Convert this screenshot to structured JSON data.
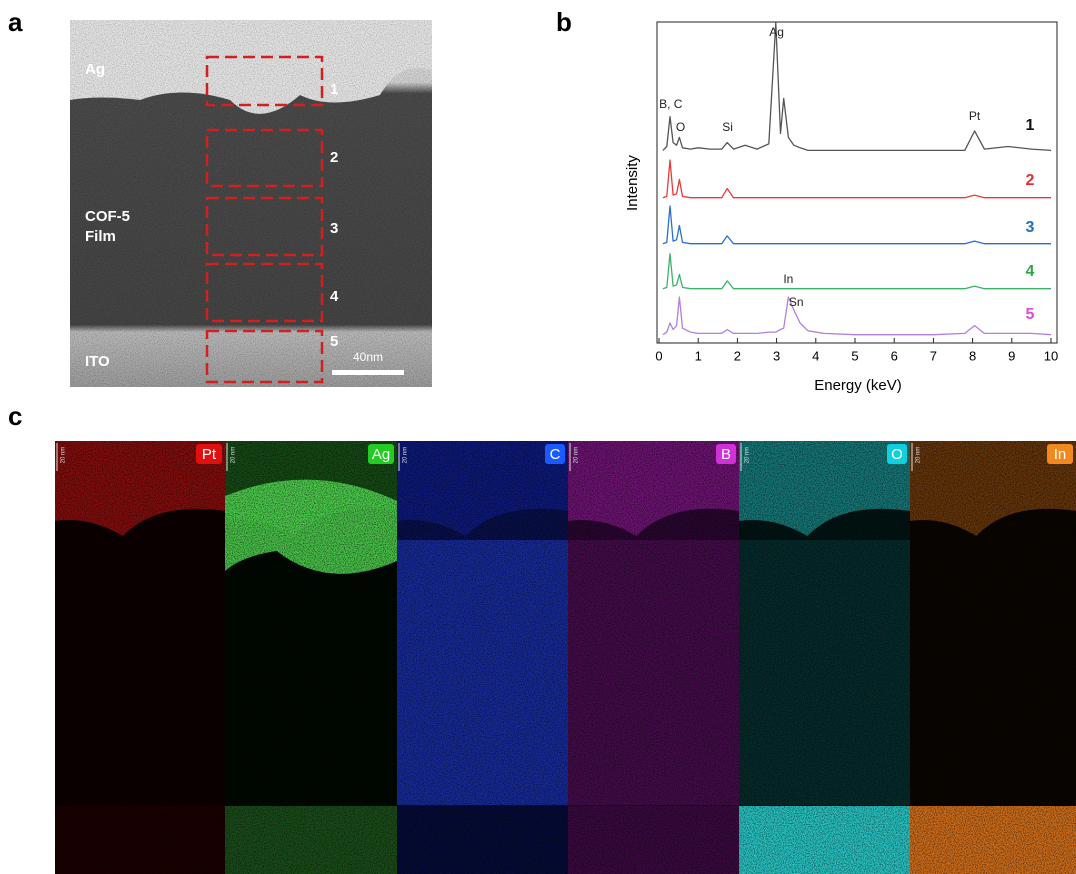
{
  "panel_labels": [
    "a",
    "b",
    "c"
  ],
  "panel_a": {
    "ag_label": "Ag",
    "film_label": [
      "COF-5",
      "Film"
    ],
    "ito_label": "ITO",
    "regions": [
      "1",
      "2",
      "3",
      "4",
      "5"
    ],
    "scale_bar": "40nm"
  },
  "chart_data": {
    "type": "line",
    "xlabel": "Energy (keV)",
    "ylabel": "Intensity",
    "x": [
      0.1,
      0.2,
      0.28,
      0.36,
      0.45,
      0.52,
      0.6,
      0.8,
      1.0,
      1.3,
      1.6,
      1.74,
      1.9,
      2.2,
      2.5,
      2.8,
      2.98,
      3.1,
      3.18,
      3.3,
      3.44,
      3.6,
      3.8,
      4.2,
      5,
      6,
      7,
      7.8,
      8.05,
      8.3,
      8.9,
      9.5,
      10
    ],
    "xlim": [
      0,
      10
    ],
    "xticks": [
      0,
      1,
      2,
      3,
      4,
      5,
      6,
      7,
      8,
      9,
      10
    ],
    "ylim": [
      0,
      1
    ],
    "series": [
      {
        "name": "1",
        "color": "#555555",
        "label_color": "#111111",
        "values": [
          0.02,
          0.05,
          0.28,
          0.08,
          0.06,
          0.12,
          0.04,
          0.03,
          0.04,
          0.03,
          0.03,
          0.08,
          0.03,
          0.06,
          0.03,
          0.07,
          1.0,
          0.15,
          0.42,
          0.12,
          0.06,
          0.04,
          0.02,
          0.02,
          0.02,
          0.02,
          0.02,
          0.02,
          0.17,
          0.03,
          0.05,
          0.03,
          0.02
        ]
      },
      {
        "name": "2",
        "color": "#e83a3a",
        "label_color": "#e0302e",
        "values": [
          0.01,
          0.02,
          0.3,
          0.03,
          0.04,
          0.15,
          0.02,
          0.01,
          0.01,
          0.01,
          0.01,
          0.08,
          0.01,
          0.01,
          0.01,
          0.01,
          0.01,
          0.01,
          0.01,
          0.01,
          0.01,
          0.01,
          0.01,
          0.01,
          0.01,
          0.01,
          0.01,
          0.01,
          0.03,
          0.01,
          0.01,
          0.01,
          0.01
        ]
      },
      {
        "name": "3",
        "color": "#2a6fd0",
        "label_color": "#1f6fbf",
        "values": [
          0.01,
          0.02,
          0.3,
          0.03,
          0.04,
          0.15,
          0.02,
          0.01,
          0.01,
          0.01,
          0.01,
          0.07,
          0.01,
          0.01,
          0.01,
          0.01,
          0.01,
          0.01,
          0.01,
          0.01,
          0.01,
          0.01,
          0.01,
          0.01,
          0.01,
          0.01,
          0.01,
          0.01,
          0.03,
          0.01,
          0.01,
          0.01,
          0.01
        ]
      },
      {
        "name": "4",
        "color": "#3cb36a",
        "label_color": "#2aa84a",
        "values": [
          0.01,
          0.02,
          0.28,
          0.03,
          0.04,
          0.12,
          0.02,
          0.01,
          0.01,
          0.01,
          0.01,
          0.07,
          0.01,
          0.01,
          0.01,
          0.01,
          0.01,
          0.01,
          0.01,
          0.01,
          0.01,
          0.01,
          0.01,
          0.01,
          0.01,
          0.01,
          0.01,
          0.01,
          0.03,
          0.01,
          0.01,
          0.01,
          0.01
        ]
      },
      {
        "name": "5",
        "color": "#b07fe0",
        "label_color": "#e048d8",
        "values": [
          0.01,
          0.03,
          0.1,
          0.05,
          0.08,
          0.3,
          0.06,
          0.03,
          0.02,
          0.02,
          0.02,
          0.05,
          0.02,
          0.02,
          0.02,
          0.03,
          0.03,
          0.05,
          0.06,
          0.3,
          0.2,
          0.1,
          0.04,
          0.02,
          0.01,
          0.01,
          0.01,
          0.02,
          0.08,
          0.02,
          0.02,
          0.02,
          0.01
        ]
      }
    ],
    "annotations": [
      {
        "text": "B, C",
        "x": 0.3
      },
      {
        "text": "O",
        "x": 0.55
      },
      {
        "text": "Si",
        "x": 1.75
      },
      {
        "text": "Ag",
        "x": 3.0
      },
      {
        "text": "Pt",
        "x": 8.05
      },
      {
        "text": "In",
        "x": 3.3
      },
      {
        "text": "Sn",
        "x": 3.5
      }
    ]
  },
  "panel_c": {
    "maps": [
      {
        "element": "Pt",
        "scale": "20 nm"
      },
      {
        "element": "Ag",
        "scale": "20 nm"
      },
      {
        "element": "C",
        "scale": "20 nm"
      },
      {
        "element": "B",
        "scale": "20 nm"
      },
      {
        "element": "O",
        "scale": "20 nm"
      },
      {
        "element": "In",
        "scale": "20 nm"
      }
    ]
  }
}
